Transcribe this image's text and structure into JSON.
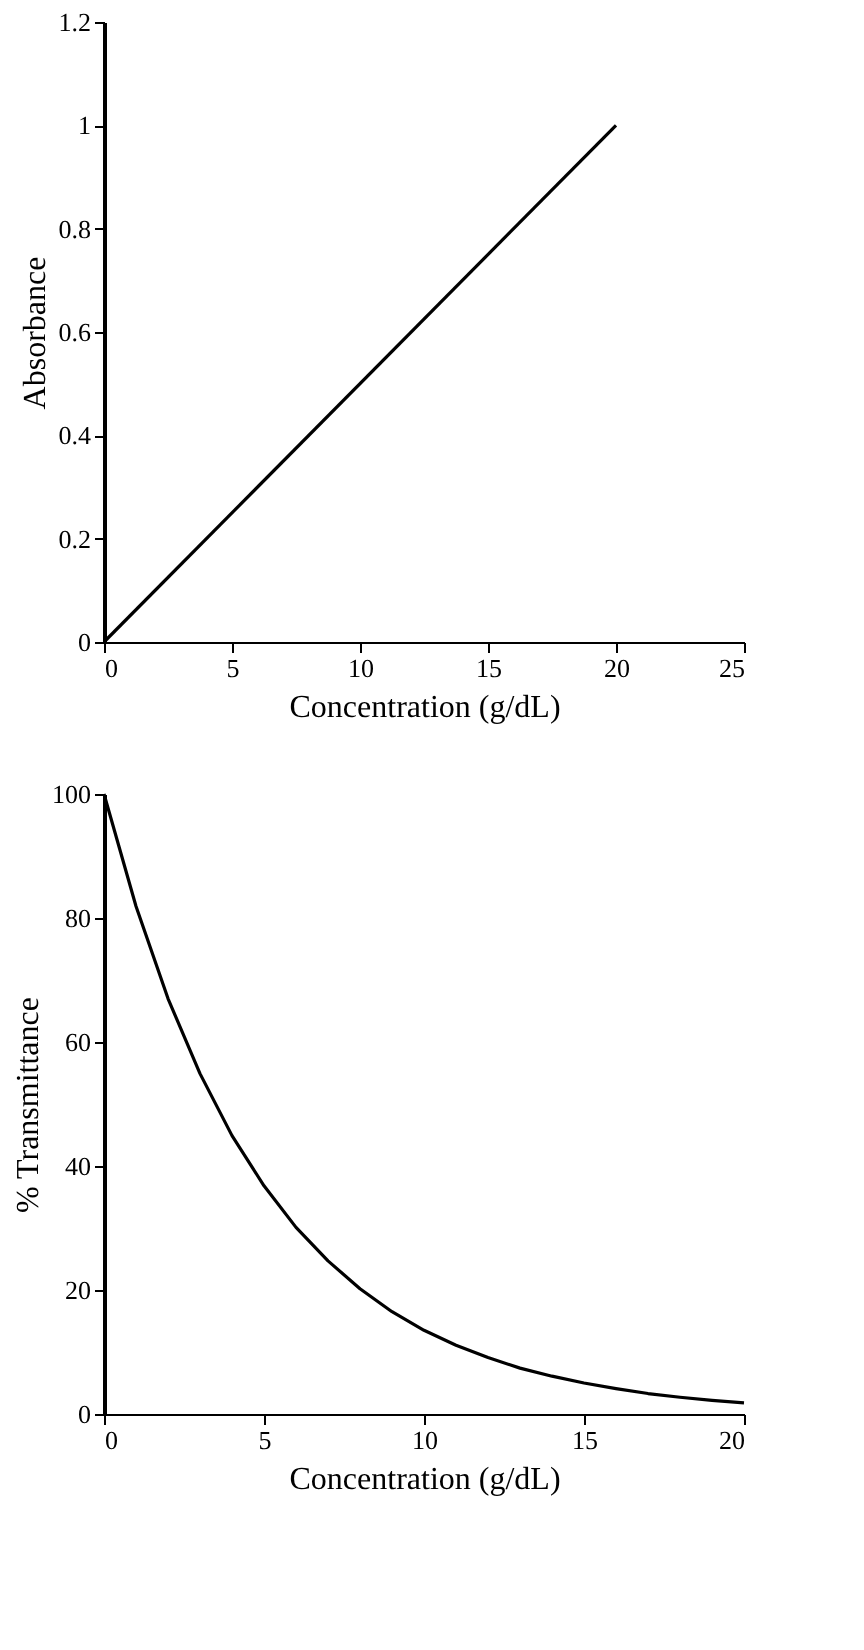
{
  "chart_data": [
    {
      "type": "line",
      "xlabel": "Concentration (g/dL)",
      "ylabel": "Absorbance",
      "xlim": [
        0,
        25
      ],
      "ylim": [
        0,
        1.2
      ],
      "xticks": [
        0,
        5,
        10,
        15,
        20,
        25
      ],
      "yticks": [
        0,
        0.2,
        0.4,
        0.6,
        0.8,
        1,
        1.2
      ],
      "grid": false,
      "marker": "none",
      "line_style": "solid",
      "series": [
        {
          "color": "#000000",
          "x": [
            0,
            20
          ],
          "values": [
            0,
            1
          ]
        }
      ]
    },
    {
      "type": "line",
      "xlabel": "Concentration (g/dL)",
      "ylabel": "% Transmittance",
      "xlim": [
        0,
        20
      ],
      "ylim": [
        0,
        100
      ],
      "xticks": [
        0,
        5,
        10,
        15,
        20
      ],
      "yticks": [
        0,
        20,
        40,
        60,
        80,
        100
      ],
      "grid": false,
      "marker": "none",
      "line_style": "solid",
      "series": [
        {
          "color": "#000000",
          "x": [
            0,
            1,
            2,
            3,
            4,
            5,
            6,
            7,
            8,
            9,
            10,
            11,
            12,
            13,
            14,
            15,
            16,
            17,
            18,
            19,
            20
          ],
          "values": [
            100,
            81.9,
            67.0,
            54.9,
            44.9,
            36.8,
            30.1,
            24.7,
            20.2,
            16.5,
            13.5,
            11.1,
            9.1,
            7.4,
            6.1,
            5.0,
            4.1,
            3.3,
            2.7,
            2.2,
            1.8
          ]
        }
      ]
    }
  ]
}
